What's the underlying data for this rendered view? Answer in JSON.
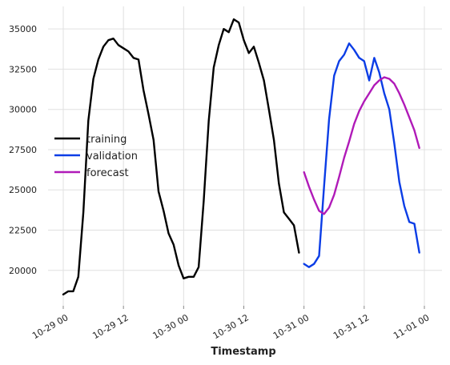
{
  "chart_data": {
    "type": "line",
    "title": "",
    "xlabel": "Timestamp",
    "ylabel": "",
    "x_domain": [
      "10-29 00",
      "11-01 00"
    ],
    "ylim": [
      17800,
      36400
    ],
    "grid": true,
    "legend_position": "center-left",
    "x_ticks": [
      {
        "t": 0,
        "label": "10-29 00"
      },
      {
        "t": 12,
        "label": "10-29 12"
      },
      {
        "t": 24,
        "label": "10-30 00"
      },
      {
        "t": 36,
        "label": "10-30 12"
      },
      {
        "t": 48,
        "label": "10-31 00"
      },
      {
        "t": 60,
        "label": "10-31 12"
      },
      {
        "t": 72,
        "label": "11-01 00"
      }
    ],
    "y_ticks": [
      {
        "v": 20000,
        "label": "20000"
      },
      {
        "v": 22500,
        "label": "22500"
      },
      {
        "v": 25000,
        "label": "25000"
      },
      {
        "v": 27500,
        "label": "27500"
      },
      {
        "v": 30000,
        "label": "30000"
      },
      {
        "v": 32500,
        "label": "32500"
      },
      {
        "v": 35000,
        "label": "35000"
      }
    ],
    "series": [
      {
        "name": "training",
        "color": "#000000",
        "points": [
          [
            0,
            18500
          ],
          [
            1,
            18700
          ],
          [
            2,
            18700
          ],
          [
            3,
            19600
          ],
          [
            4,
            23600
          ],
          [
            5,
            29300
          ],
          [
            6,
            31900
          ],
          [
            7,
            33100
          ],
          [
            8,
            33900
          ],
          [
            9,
            34300
          ],
          [
            10,
            34400
          ],
          [
            11,
            34000
          ],
          [
            12,
            33800
          ],
          [
            13,
            33600
          ],
          [
            14,
            33200
          ],
          [
            15,
            33100
          ],
          [
            16,
            31200
          ],
          [
            17,
            29700
          ],
          [
            18,
            28100
          ],
          [
            19,
            24900
          ],
          [
            20,
            23700
          ],
          [
            21,
            22300
          ],
          [
            22,
            21600
          ],
          [
            23,
            20300
          ],
          [
            24,
            19500
          ],
          [
            25,
            19600
          ],
          [
            26,
            19600
          ],
          [
            27,
            20200
          ],
          [
            28,
            24300
          ],
          [
            29,
            29300
          ],
          [
            30,
            32600
          ],
          [
            31,
            34000
          ],
          [
            32,
            35000
          ],
          [
            33,
            34800
          ],
          [
            34,
            35600
          ],
          [
            35,
            35400
          ],
          [
            36,
            34300
          ],
          [
            37,
            33500
          ],
          [
            38,
            33900
          ],
          [
            39,
            32900
          ],
          [
            40,
            31800
          ],
          [
            41,
            30000
          ],
          [
            42,
            28100
          ],
          [
            43,
            25400
          ],
          [
            44,
            23600
          ],
          [
            45,
            23200
          ],
          [
            46,
            22800
          ],
          [
            47,
            21100
          ]
        ]
      },
      {
        "name": "validation",
        "color": "#0b3de6",
        "points": [
          [
            48,
            20400
          ],
          [
            49,
            20200
          ],
          [
            50,
            20400
          ],
          [
            51,
            20900
          ],
          [
            52,
            25200
          ],
          [
            53,
            29400
          ],
          [
            54,
            32100
          ],
          [
            55,
            33000
          ],
          [
            56,
            33400
          ],
          [
            57,
            34100
          ],
          [
            58,
            33700
          ],
          [
            59,
            33200
          ],
          [
            60,
            33000
          ],
          [
            61,
            31800
          ],
          [
            62,
            33200
          ],
          [
            63,
            32300
          ],
          [
            64,
            31000
          ],
          [
            65,
            30000
          ],
          [
            66,
            27900
          ],
          [
            67,
            25500
          ],
          [
            68,
            24000
          ],
          [
            69,
            23000
          ],
          [
            70,
            22900
          ],
          [
            71,
            21100
          ]
        ]
      },
      {
        "name": "forecast",
        "color": "#b01ab8",
        "points": [
          [
            48,
            26100
          ],
          [
            49,
            25200
          ],
          [
            50,
            24400
          ],
          [
            51,
            23700
          ],
          [
            52,
            23500
          ],
          [
            53,
            23900
          ],
          [
            54,
            24700
          ],
          [
            55,
            25800
          ],
          [
            56,
            27000
          ],
          [
            57,
            28000
          ],
          [
            58,
            29100
          ],
          [
            59,
            29900
          ],
          [
            60,
            30500
          ],
          [
            61,
            31000
          ],
          [
            62,
            31500
          ],
          [
            63,
            31800
          ],
          [
            64,
            32000
          ],
          [
            65,
            31900
          ],
          [
            66,
            31600
          ],
          [
            67,
            31000
          ],
          [
            68,
            30300
          ],
          [
            69,
            29500
          ],
          [
            70,
            28700
          ],
          [
            71,
            27600
          ]
        ]
      }
    ]
  }
}
